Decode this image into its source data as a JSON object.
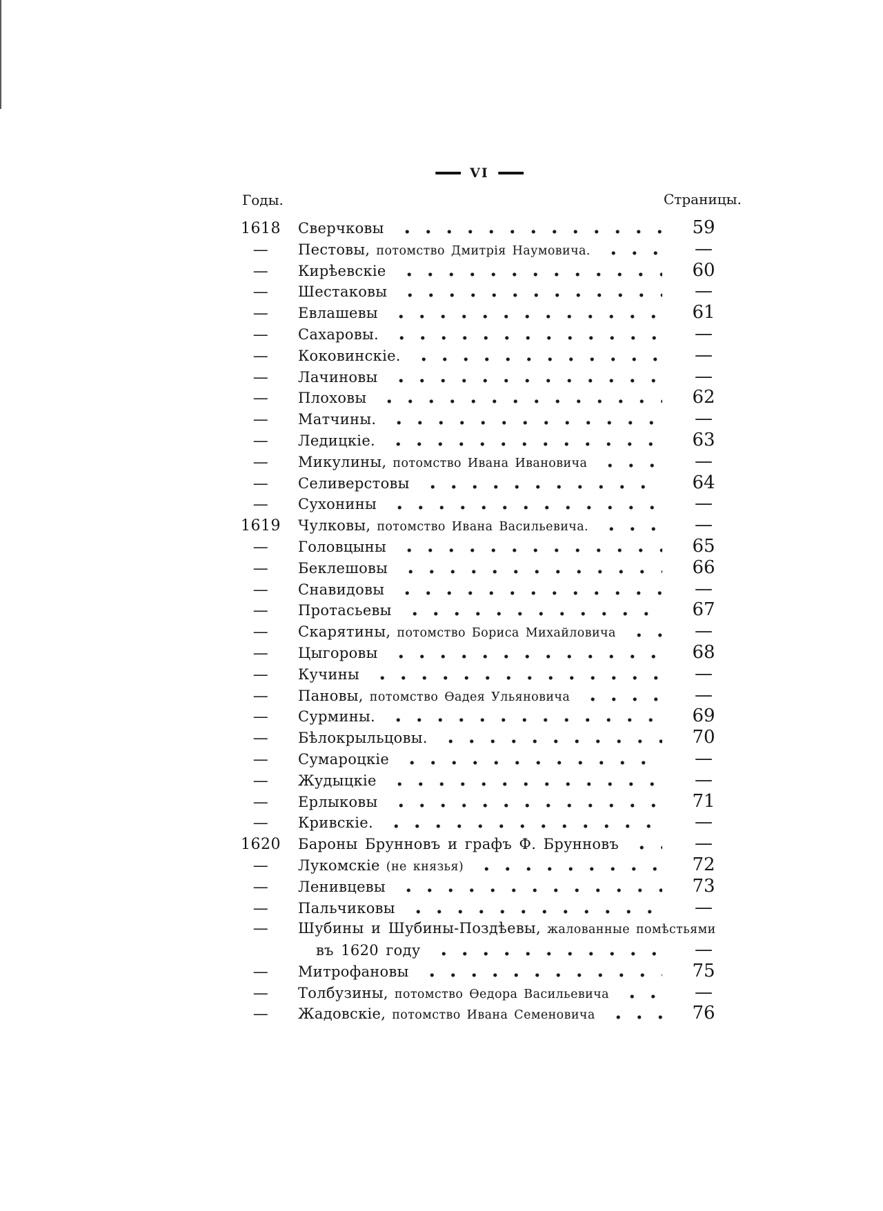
{
  "folio": {
    "number": "VI"
  },
  "columns": {
    "years_label": "Годы.",
    "pages_label": "Страницы."
  },
  "toc": {
    "rows": [
      {
        "year": "1618",
        "name": "Сверчковы",
        "page": "59"
      },
      {
        "year": "—",
        "name": "Пестовы,",
        "sub": "потомство Дмитрія Наумовича.",
        "page": "—"
      },
      {
        "year": "—",
        "name": "Кирѣевскіе",
        "page": "60"
      },
      {
        "year": "—",
        "name": "Шестаковы",
        "page": "—"
      },
      {
        "year": "—",
        "name": "Евлашевы",
        "page": "61"
      },
      {
        "year": "—",
        "name": "Сахаровы.",
        "page": "—"
      },
      {
        "year": "—",
        "name": "Коковинскіе.",
        "page": "—"
      },
      {
        "year": "—",
        "name": "Лачиновы",
        "page": "—"
      },
      {
        "year": "—",
        "name": "Плоховы",
        "page": "62"
      },
      {
        "year": "—",
        "name": "Матчины.",
        "page": "—"
      },
      {
        "year": "—",
        "name": "Ледицкіе.",
        "page": "63"
      },
      {
        "year": "—",
        "name": "Микулины,",
        "sub": "потомство Ивана Ивановича",
        "page": "—"
      },
      {
        "year": "—",
        "name": "Селиверстовы",
        "page": "64"
      },
      {
        "year": "—",
        "name": "Сухонины",
        "page": "—"
      },
      {
        "year": "1619",
        "name": "Чулковы,",
        "sub": "потомство Ивана Васильевича.",
        "page": "—"
      },
      {
        "year": "—",
        "name": "Головцыны",
        "page": "65"
      },
      {
        "year": "—",
        "name": "Беклешовы",
        "page": "66"
      },
      {
        "year": "—",
        "name": "Снавидовы",
        "page": "—"
      },
      {
        "year": "—",
        "name": "Протасьевы",
        "page": "67"
      },
      {
        "year": "—",
        "name": "Скарятины,",
        "sub": "потомство Бориса Михайловича",
        "page": "—"
      },
      {
        "year": "—",
        "name": "Цыгоровы",
        "page": "68"
      },
      {
        "year": "—",
        "name": "Кучины",
        "page": "—"
      },
      {
        "year": "—",
        "name": "Пановы,",
        "sub": "потомство Ѳадея Ульяновича",
        "page": "—"
      },
      {
        "year": "—",
        "name": "Сурмины.",
        "page": "69"
      },
      {
        "year": "—",
        "name": "Бѣлокрыльцовы.",
        "page": "70"
      },
      {
        "year": "—",
        "name": "Сумароцкіе",
        "page": "—"
      },
      {
        "year": "—",
        "name": "Жудыцкіе",
        "page": "—"
      },
      {
        "year": "—",
        "name": "Ерлыковы",
        "page": "71"
      },
      {
        "year": "—",
        "name": "Кривскіе.",
        "page": "—"
      },
      {
        "year": "1620",
        "name": "Бароны Брунновъ и графъ Ф. Брунновъ",
        "page": "—"
      },
      {
        "year": "—",
        "name": "Лукомскіе",
        "sub": "(не князья)",
        "page": "72"
      },
      {
        "year": "—",
        "name": "Ленивцевы",
        "page": "73"
      },
      {
        "year": "—",
        "name": "Пальчиковы",
        "page": "—"
      },
      {
        "year": "—",
        "name": "Шубины и Шубины-Поздѣевы,",
        "sub": "жалованные помѣстьями",
        "page": "",
        "leader": false
      },
      {
        "year": "",
        "name": "въ 1620 году",
        "page": "—",
        "indent": true
      },
      {
        "year": "—",
        "name": "Митрофановы",
        "page": "75"
      },
      {
        "year": "—",
        "name": "Толбузины,",
        "sub": "потомство Ѳедора Васильевича",
        "page": "—"
      },
      {
        "year": "—",
        "name": "Жадовскіе,",
        "sub": "потомство Ивана Семеновича",
        "page": "76"
      }
    ]
  }
}
